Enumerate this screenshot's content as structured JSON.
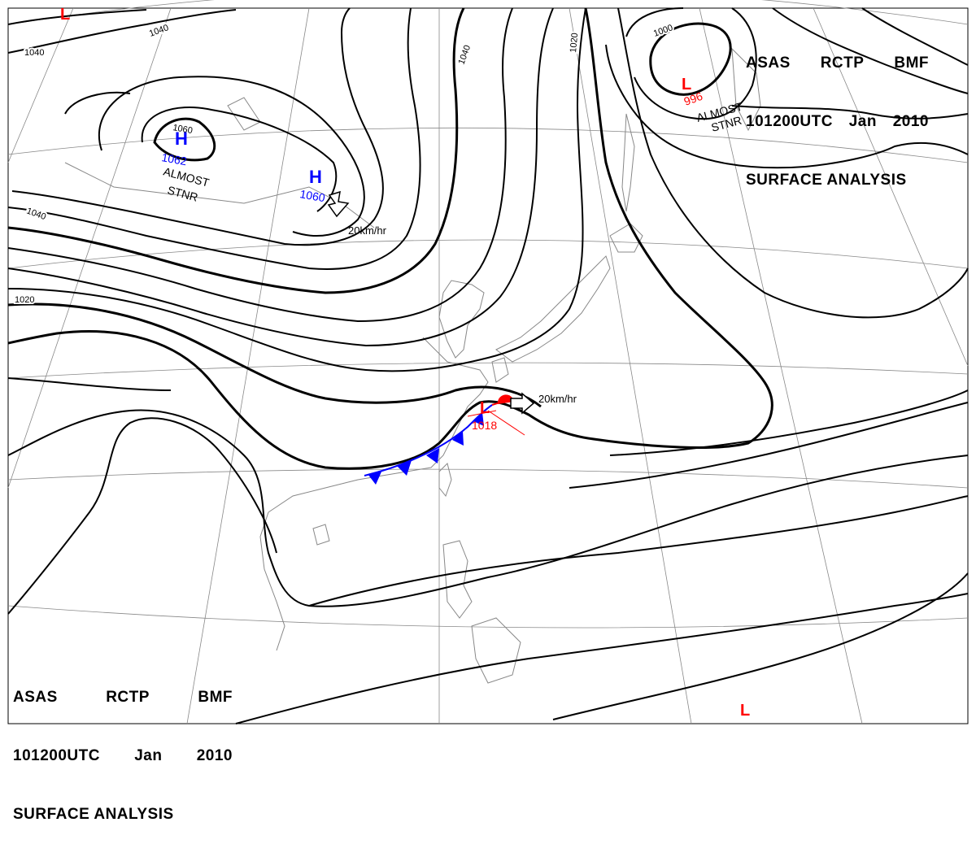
{
  "header": {
    "line1": [
      "ASAS",
      "RCTP",
      "BMF"
    ],
    "line2": [
      "101200UTC",
      "Jan",
      "2010"
    ],
    "line3": "SURFACE ANALYSIS"
  },
  "isobar_labels": [
    "1040",
    "1040",
    "1040",
    "1040",
    "1020",
    "1020",
    "1060",
    "1000"
  ],
  "pressure_systems": [
    {
      "type": "H",
      "value": "1062",
      "color": "#0000ff"
    },
    {
      "type": "H",
      "value": "1060",
      "color": "#0000ff"
    },
    {
      "type": "L",
      "value": "996",
      "color": "#ff0000"
    },
    {
      "type": "L",
      "value": "1018",
      "color": "#ff0000"
    },
    {
      "type": "L",
      "value": "",
      "color": "#ff0000"
    },
    {
      "type": "L",
      "value": "",
      "color": "#ff0000"
    }
  ],
  "annotations": {
    "almost_stnr_1a": "ALMOST",
    "almost_stnr_1b": "STNR",
    "almost_stnr_2a": "ALMOST",
    "almost_stnr_2b": "STNR",
    "motion_1": "20km/hr",
    "motion_2": "20km/hr"
  },
  "colors": {
    "isobar": "#000000",
    "graticule": "#888888",
    "coast": "#888888",
    "cold_front": "#0000ff",
    "warm_front": "#ff0000",
    "high": "#0000ff",
    "low": "#ff0000"
  }
}
